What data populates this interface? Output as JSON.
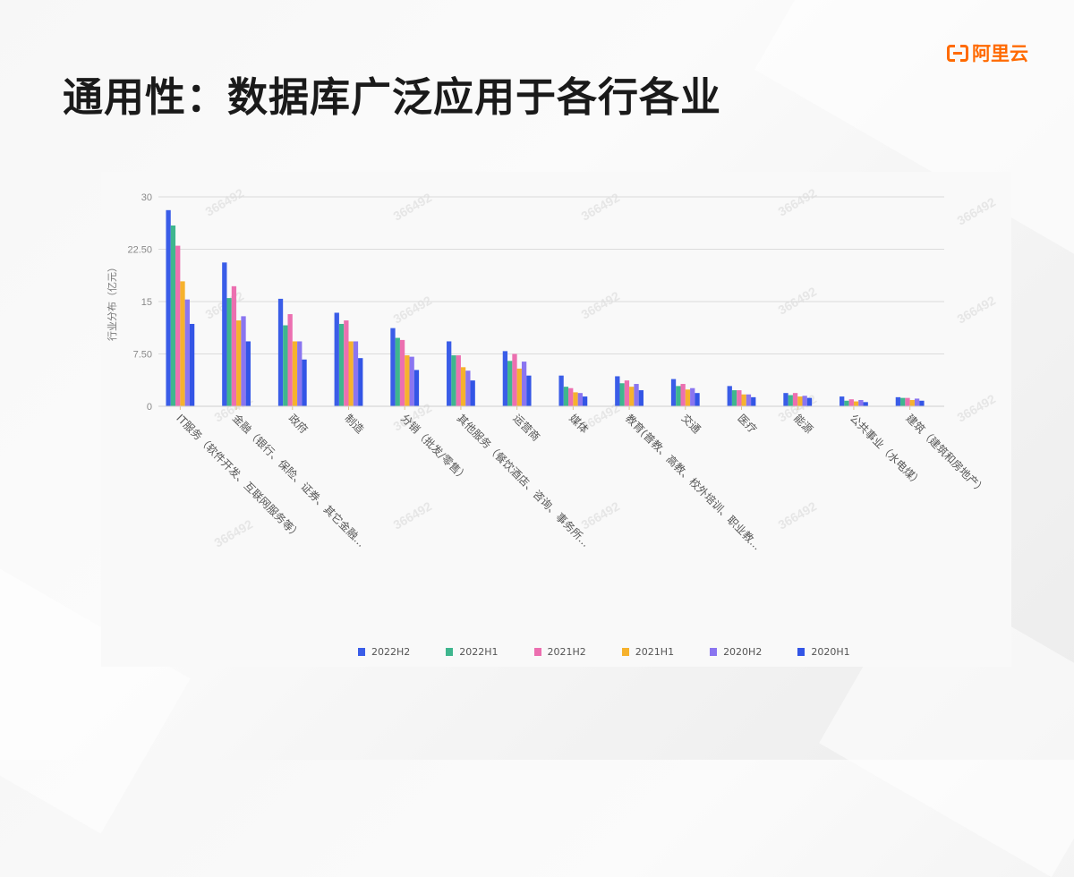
{
  "page": {
    "title": "通用性：数据库广泛应用于各行各业",
    "logo_text": "阿里云",
    "watermark": "366492"
  },
  "colors": {
    "accent": "#ff6a00",
    "series": [
      "#3a5de8",
      "#3fb68e",
      "#ec6fb0",
      "#f6b22d",
      "#8a75f0",
      "#3355e6"
    ]
  },
  "chart_data": {
    "type": "bar",
    "title": "",
    "xlabel": "",
    "ylabel": "行业分布（亿元）",
    "ylim": [
      0,
      30
    ],
    "yticks": [
      "0",
      "7.50",
      "15",
      "22.50",
      "30"
    ],
    "grid": true,
    "legend_position": "bottom",
    "categories": [
      "IT服务（软件开发、互联网服务等）",
      "金融（银行、保险、证券、其它金融...",
      "政府",
      "制造",
      "分销（批发/零售）",
      "其他服务（餐饮酒店、咨询、事务所...",
      "运营商",
      "媒体",
      "教育(普教、高教、校外培训、职业教...",
      "交通",
      "医疗",
      "能源",
      "公共事业（水电煤）",
      "建筑（建筑和房地产）"
    ],
    "series": [
      {
        "name": "2022H2",
        "values": [
          28.1,
          20.6,
          15.4,
          13.4,
          11.2,
          9.3,
          7.9,
          4.4,
          4.3,
          3.9,
          2.9,
          1.9,
          1.4,
          1.3
        ]
      },
      {
        "name": "2022H1",
        "values": [
          25.9,
          15.5,
          11.6,
          11.8,
          9.8,
          7.3,
          6.5,
          2.8,
          3.3,
          2.9,
          2.3,
          1.6,
          0.8,
          1.2
        ]
      },
      {
        "name": "2021H2",
        "values": [
          23.0,
          17.2,
          13.2,
          12.3,
          9.5,
          7.3,
          7.5,
          2.6,
          3.7,
          3.2,
          2.3,
          1.9,
          1.0,
          1.2
        ]
      },
      {
        "name": "2021H1",
        "values": [
          17.9,
          12.3,
          9.3,
          9.3,
          7.3,
          5.6,
          5.4,
          2.0,
          2.8,
          2.4,
          1.7,
          1.4,
          0.7,
          0.9
        ]
      },
      {
        "name": "2020H2",
        "values": [
          15.3,
          12.9,
          9.3,
          9.3,
          7.1,
          5.1,
          6.4,
          1.9,
          3.2,
          2.6,
          1.7,
          1.5,
          0.9,
          1.1
        ]
      },
      {
        "name": "2020H1",
        "values": [
          11.8,
          9.3,
          6.7,
          6.9,
          5.2,
          3.7,
          4.4,
          1.4,
          2.3,
          1.9,
          1.3,
          1.2,
          0.6,
          0.8
        ]
      }
    ]
  }
}
